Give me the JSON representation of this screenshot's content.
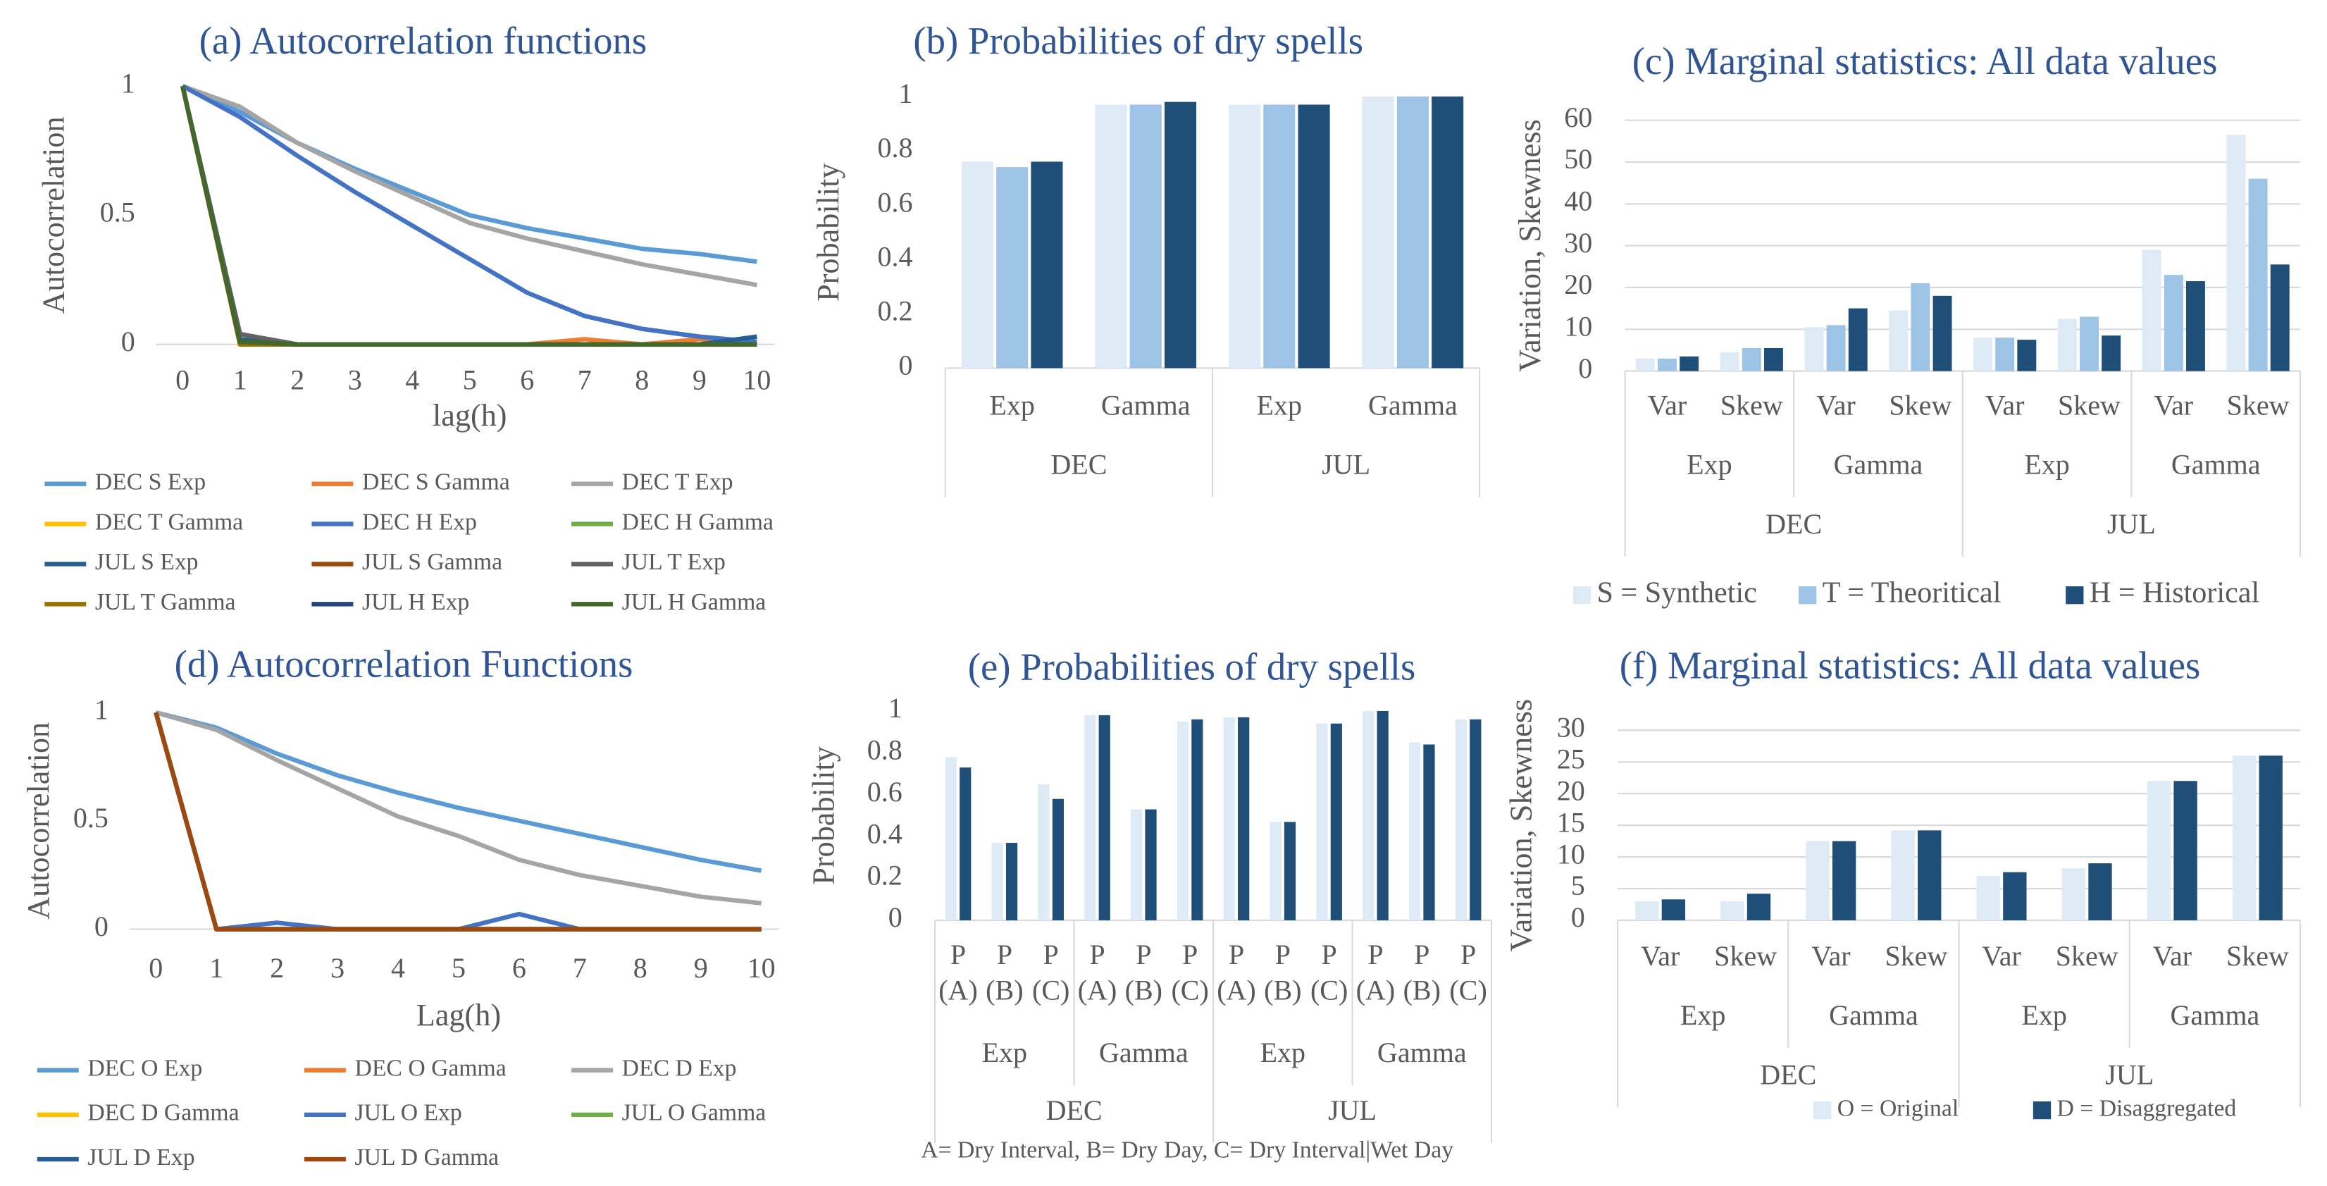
{
  "chart_data": [
    {
      "type": "line",
      "title": "(a) Autocorrelation functions",
      "x_label": "lag(h)",
      "y_label": "Autocorrelation",
      "x": [
        0,
        1,
        2,
        3,
        4,
        5,
        6,
        7,
        8,
        9,
        10
      ],
      "xlim": [
        0,
        10
      ],
      "xticks": [
        0,
        1,
        2,
        3,
        4,
        5,
        6,
        7,
        8,
        9,
        10
      ],
      "ylim": [
        0,
        1
      ],
      "yticks": [
        0,
        0.5,
        1
      ],
      "grid": false,
      "series": [
        {
          "name": "DEC S Exp",
          "color": "#5B9BD5",
          "values": [
            1,
            0.9,
            0.78,
            0.68,
            0.59,
            0.5,
            0.45,
            0.41,
            0.37,
            0.35,
            0.32
          ]
        },
        {
          "name": "DEC S Gamma",
          "color": "#ED7D31",
          "values": [
            1,
            0.02,
            0,
            0,
            0,
            0,
            0,
            0.02,
            0,
            0.02,
            0
          ]
        },
        {
          "name": "DEC T Exp",
          "color": "#A5A5A5",
          "values": [
            1,
            0.92,
            0.78,
            0.67,
            0.57,
            0.47,
            0.41,
            0.36,
            0.31,
            0.27,
            0.23
          ]
        },
        {
          "name": "DEC T Gamma",
          "color": "#FFC000",
          "values": [
            1,
            0,
            0,
            0,
            0,
            0,
            0,
            0,
            0,
            0,
            0
          ]
        },
        {
          "name": "DEC H Exp",
          "color": "#4472C4",
          "values": [
            1,
            0.88,
            0.73,
            0.59,
            0.46,
            0.33,
            0.2,
            0.11,
            0.06,
            0.03,
            0.01
          ]
        },
        {
          "name": "DEC H Gamma",
          "color": "#70AD47",
          "values": [
            1,
            0.01,
            0,
            0,
            0,
            0,
            0,
            0,
            0,
            0,
            0
          ]
        },
        {
          "name": "JUL S Exp",
          "color": "#255E91",
          "values": [
            1,
            0.02,
            0,
            0,
            0,
            0,
            0,
            0,
            0,
            0,
            0.03
          ]
        },
        {
          "name": "JUL S Gamma",
          "color": "#9E480E",
          "values": [
            1,
            0,
            0,
            0,
            0,
            0,
            0,
            0,
            0,
            0,
            0
          ]
        },
        {
          "name": "JUL T Exp",
          "color": "#636363",
          "values": [
            1,
            0.04,
            0,
            0,
            0,
            0,
            0,
            0,
            0,
            0,
            0
          ]
        },
        {
          "name": "JUL T Gamma",
          "color": "#997300",
          "values": [
            1,
            0,
            0,
            0,
            0,
            0,
            0,
            0,
            0,
            0,
            0
          ]
        },
        {
          "name": "JUL H Exp",
          "color": "#264478",
          "values": [
            1,
            0.01,
            0,
            0,
            0,
            0,
            0,
            0,
            0,
            0,
            0
          ]
        },
        {
          "name": "JUL H Gamma",
          "color": "#43682B",
          "values": [
            1,
            0.01,
            0,
            0,
            0,
            0,
            0,
            0,
            0,
            0,
            0
          ]
        }
      ]
    },
    {
      "type": "bar",
      "title": "(b) Probabilities of dry spells",
      "y_label": "Probability",
      "categories": [
        "Exp",
        "Gamma",
        "Exp",
        "Gamma"
      ],
      "groups": [
        [
          "DEC",
          "JUL"
        ]
      ],
      "ylim": [
        0,
        1
      ],
      "yticks": [
        0,
        0.2,
        0.4,
        0.6,
        0.8,
        1
      ],
      "grid": false,
      "series": [
        {
          "color": "#DEEBF7",
          "values": [
            0.76,
            0.97,
            0.97,
            1
          ]
        },
        {
          "color": "#9DC3E6",
          "values": [
            0.74,
            0.97,
            0.97,
            1
          ]
        },
        {
          "color": "#1F4E79",
          "values": [
            0.76,
            0.98,
            0.97,
            1
          ]
        }
      ]
    },
    {
      "type": "bar",
      "title": "(c) Marginal statistics: All data values",
      "y_label": "Variation, Skewness",
      "categories": [
        "Var",
        "Skew",
        "Var",
        "Skew",
        "Var",
        "Skew",
        "Var",
        "Skew"
      ],
      "groups": [
        [
          "Exp",
          "Gamma",
          "Exp",
          "Gamma"
        ],
        [
          "DEC",
          "JUL"
        ]
      ],
      "ylim": [
        0,
        60
      ],
      "yticks": [
        0,
        10,
        20,
        30,
        40,
        50,
        60
      ],
      "grid": true,
      "series": [
        {
          "name": "S = Synthetic",
          "color": "#DEEBF7",
          "values": [
            3,
            4.5,
            10.5,
            14.5,
            8,
            12.5,
            29,
            56.5
          ]
        },
        {
          "name": "T = Theoritical",
          "color": "#9DC3E6",
          "values": [
            3,
            5.5,
            11,
            21,
            8,
            13,
            23,
            46
          ]
        },
        {
          "name": "H = Historical",
          "color": "#1F4E79",
          "values": [
            3.5,
            5.5,
            15,
            18,
            7.5,
            8.5,
            21.5,
            25.5
          ]
        }
      ]
    },
    {
      "type": "line",
      "title": "(d) Autocorrelation Functions",
      "x_label": "Lag(h)",
      "y_label": "Autocorrelation",
      "x": [
        0,
        1,
        2,
        3,
        4,
        5,
        6,
        7,
        8,
        9,
        10
      ],
      "xlim": [
        0,
        10
      ],
      "xticks": [
        0,
        1,
        2,
        3,
        4,
        5,
        6,
        7,
        8,
        9,
        10
      ],
      "ylim": [
        0,
        1
      ],
      "yticks": [
        0,
        0.5,
        1
      ],
      "grid": false,
      "series": [
        {
          "name": "DEC O Exp",
          "color": "#5B9BD5",
          "values": [
            1,
            0.93,
            0.81,
            0.71,
            0.63,
            0.56,
            0.5,
            0.44,
            0.38,
            0.32,
            0.27
          ]
        },
        {
          "name": "DEC O Gamma",
          "color": "#ED7D31",
          "values": [
            1,
            0,
            0,
            0,
            0,
            0,
            0,
            0,
            0,
            0,
            0
          ]
        },
        {
          "name": "DEC D Exp",
          "color": "#A5A5A5",
          "values": [
            1,
            0.92,
            0.78,
            0.65,
            0.52,
            0.43,
            0.32,
            0.25,
            0.2,
            0.15,
            0.12
          ]
        },
        {
          "name": "DEC D Gamma",
          "color": "#FFC000",
          "values": [
            1,
            0,
            0,
            0,
            0,
            0,
            0,
            0,
            0,
            0,
            0
          ]
        },
        {
          "name": "JUL O Exp",
          "color": "#4472C4",
          "values": [
            1,
            0,
            0.03,
            0,
            0,
            0,
            0.07,
            0,
            0,
            0,
            0
          ]
        },
        {
          "name": "JUL O Gamma",
          "color": "#70AD47",
          "values": [
            1,
            0,
            0,
            0,
            0,
            0,
            0,
            0,
            0,
            0,
            0
          ]
        },
        {
          "name": "JUL D Exp",
          "color": "#255E91",
          "values": [
            1,
            0,
            0,
            0,
            0,
            0,
            0,
            0,
            0,
            0,
            0
          ]
        },
        {
          "name": "JUL D Gamma",
          "color": "#9E480E",
          "values": [
            1,
            0,
            0,
            0,
            0,
            0,
            0,
            0,
            0,
            0,
            0
          ]
        }
      ]
    },
    {
      "type": "bar",
      "title": "(e) Probabilities of dry spells",
      "y_label": "Probability",
      "categories": [
        [
          "P",
          "(A)"
        ],
        [
          "P",
          "(B)"
        ],
        [
          "P",
          "(C)"
        ],
        [
          "P",
          "(A)"
        ],
        [
          "P",
          "(B)"
        ],
        [
          "P",
          "(C)"
        ],
        [
          "P",
          "(A)"
        ],
        [
          "P",
          "(B)"
        ],
        [
          "P",
          "(C)"
        ],
        [
          "P",
          "(A)"
        ],
        [
          "P",
          "(B)"
        ],
        [
          "P",
          "(C)"
        ]
      ],
      "groups": [
        [
          "Exp",
          "Gamma",
          "Exp",
          "Gamma"
        ],
        [
          "DEC",
          "JUL"
        ]
      ],
      "note": "A= Dry Interval, B= Dry Day, C= Dry Interval|Wet Day",
      "ylim": [
        0,
        1
      ],
      "yticks": [
        0,
        0.2,
        0.4,
        0.6,
        0.8,
        1
      ],
      "grid": false,
      "series": [
        {
          "color": "#DEEBF7",
          "values": [
            0.78,
            0.37,
            0.65,
            0.98,
            0.53,
            0.95,
            0.97,
            0.47,
            0.94,
            1,
            0.85,
            0.96
          ]
        },
        {
          "color": "#1F4E79",
          "values": [
            0.73,
            0.37,
            0.58,
            0.98,
            0.53,
            0.96,
            0.97,
            0.47,
            0.94,
            1,
            0.84,
            0.96
          ]
        }
      ]
    },
    {
      "type": "bar",
      "title": "(f) Marginal statistics: All data values",
      "y_label": "Variation, Skewness",
      "categories": [
        "Var",
        "Skew",
        "Var",
        "Skew",
        "Var",
        "Skew",
        "Var",
        "Skew"
      ],
      "groups": [
        [
          "Exp",
          "Gamma",
          "Exp",
          "Gamma"
        ],
        [
          "DEC",
          "JUL"
        ]
      ],
      "ylim": [
        0,
        30
      ],
      "yticks": [
        0,
        5,
        10,
        15,
        20,
        25,
        30
      ],
      "grid": true,
      "series": [
        {
          "name": "O = Original",
          "color": "#DEEBF7",
          "values": [
            3,
            3,
            12.5,
            14.2,
            7,
            8.2,
            22,
            26
          ]
        },
        {
          "name": "D = Disaggregated",
          "color": "#1F4E79",
          "values": [
            3.3,
            4.2,
            12.5,
            14.2,
            7.6,
            9,
            22,
            26
          ]
        }
      ]
    }
  ]
}
